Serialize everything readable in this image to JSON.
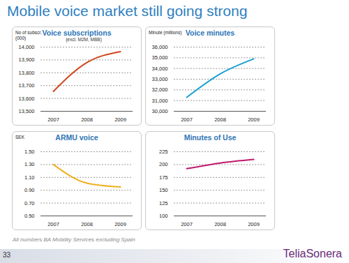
{
  "title": "Mobile voice market still going strong",
  "footnote": "All numbers BA Mobility Services excluding Spain",
  "page_number": "33",
  "logo": "TeliaSonera",
  "chart_data": [
    {
      "type": "line",
      "title": "Voice subscriptions",
      "subtitle": "(excl. M2M, MBB)",
      "ylabel": "No of subscr.(000)",
      "categories": [
        "2007",
        "2008",
        "2009"
      ],
      "values": [
        13655,
        13880,
        13965
      ],
      "color": "#d0461d",
      "ylim": [
        13500,
        14000
      ],
      "yticks": [
        {
          "value": 13500,
          "label": "13,500"
        },
        {
          "value": 13600,
          "label": "13,600"
        },
        {
          "value": 13700,
          "label": "13,700"
        },
        {
          "value": 13800,
          "label": "13,800"
        },
        {
          "value": 13900,
          "label": "13,900"
        },
        {
          "value": 14000,
          "label": "14,000"
        }
      ],
      "grid": true
    },
    {
      "type": "line",
      "title": "Voice minutes",
      "ylabel": "Minute (millions)",
      "categories": [
        "2007",
        "2008",
        "2009"
      ],
      "values": [
        31300,
        33500,
        34900
      ],
      "color": "#1aa0d0",
      "ylim": [
        30000,
        36000
      ],
      "yticks": [
        {
          "value": 30000,
          "label": "30,000"
        },
        {
          "value": 31000,
          "label": "31,000"
        },
        {
          "value": 32000,
          "label": "32,000"
        },
        {
          "value": 33000,
          "label": "33,000"
        },
        {
          "value": 34000,
          "label": "34,000"
        },
        {
          "value": 35000,
          "label": "35,000"
        },
        {
          "value": 36000,
          "label": "36,000"
        }
      ],
      "grid": true
    },
    {
      "type": "line",
      "title": "ARMU voice",
      "ylabel": "SEK",
      "categories": [
        "2007",
        "2008",
        "2009"
      ],
      "values": [
        1.3,
        1.01,
        0.95
      ],
      "color": "#f0b020",
      "ylim": [
        0.5,
        1.5
      ],
      "yticks": [
        {
          "value": 0.5,
          "label": "0.50"
        },
        {
          "value": 0.7,
          "label": "0.70"
        },
        {
          "value": 0.9,
          "label": "0.90"
        },
        {
          "value": 1.1,
          "label": "1.10"
        },
        {
          "value": 1.3,
          "label": "1.30"
        },
        {
          "value": 1.5,
          "label": "1.50"
        }
      ],
      "grid": true
    },
    {
      "type": "line",
      "title": "Minutes of Use",
      "categories": [
        "2007",
        "2008",
        "2009"
      ],
      "values": [
        192,
        203,
        210
      ],
      "color": "#c0186c",
      "ylim": [
        100,
        225
      ],
      "yticks": [
        100,
        125,
        150,
        175,
        200,
        225
      ],
      "grid": true
    }
  ]
}
